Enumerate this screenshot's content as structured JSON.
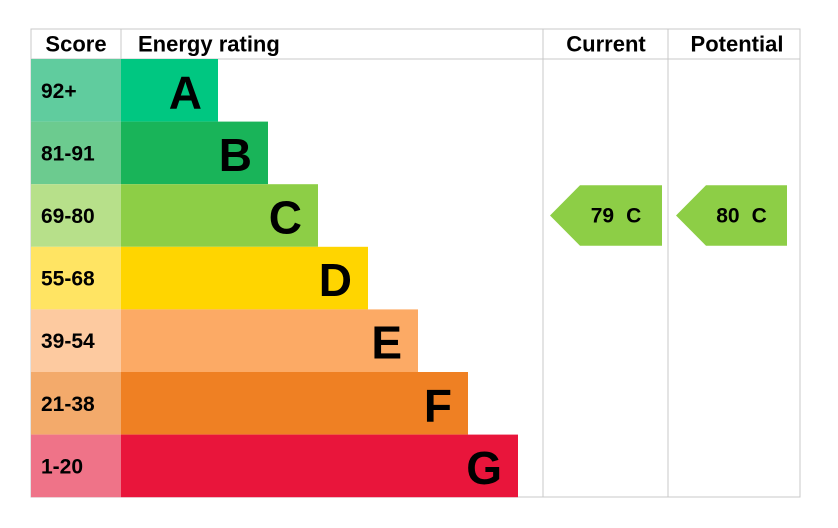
{
  "header": {
    "score": "Score",
    "rating": "Energy rating",
    "current": "Current",
    "potential": "Potential"
  },
  "bands": [
    {
      "score": "92+",
      "letter": "A",
      "color": "#00c781",
      "score_color": "#60cc9e"
    },
    {
      "score": "81-91",
      "letter": "B",
      "color": "#19b459",
      "score_color": "#6ccb8f"
    },
    {
      "score": "69-80",
      "letter": "C",
      "color": "#8dce46",
      "score_color": "#b7e08a"
    },
    {
      "score": "55-68",
      "letter": "D",
      "color": "#ffd500",
      "score_color": "#ffe463"
    },
    {
      "score": "39-54",
      "letter": "E",
      "color": "#fcaa65",
      "score_color": "#fdcaa0"
    },
    {
      "score": "21-38",
      "letter": "F",
      "color": "#ef8023",
      "score_color": "#f3aa6b"
    },
    {
      "score": "1-20",
      "letter": "G",
      "color": "#e9153b",
      "score_color": "#ef7388"
    }
  ],
  "current": {
    "value": 79,
    "letter": "C"
  },
  "potential": {
    "value": 80,
    "letter": "C"
  }
}
